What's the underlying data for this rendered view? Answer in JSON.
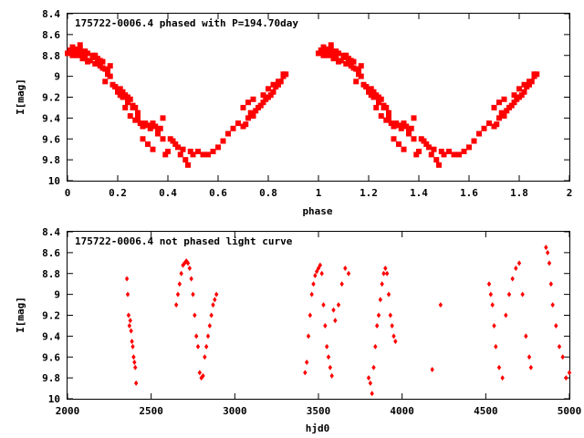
{
  "chart_data": [
    {
      "type": "scatter",
      "title": "175722-0006.4 phased with P=194.70day",
      "xlabel": "phase",
      "ylabel": "I[mag]",
      "xlim": [
        0,
        2
      ],
      "ylim": [
        8.4,
        10
      ],
      "y_inverted": true,
      "grid": false,
      "color": "#ff0000",
      "marker": "filled square",
      "x_ticks": [
        "0",
        "0.2",
        "0.4",
        "0.6",
        "0.8",
        "1",
        "1.2",
        "1.4",
        "1.6",
        "1.8",
        "2"
      ],
      "y_ticks": [
        "8.4",
        "8.6",
        "8.8",
        "9",
        "9.2",
        "9.4",
        "9.6",
        "9.8",
        "10"
      ],
      "series": [
        {
          "x": [
            0.0,
            0.01,
            0.02,
            0.03,
            0.04,
            0.05,
            0.06,
            0.07,
            0.08,
            0.09,
            0.1,
            0.11,
            0.12,
            0.13,
            0.14,
            0.15,
            0.16,
            0.17,
            0.02,
            0.04,
            0.06,
            0.08,
            0.1,
            0.12,
            0.14,
            0.16,
            0.03,
            0.05,
            0.07,
            0.11,
            0.13,
            0.15,
            0.17,
            0.18,
            0.19,
            0.2,
            0.21,
            0.22,
            0.23,
            0.24,
            0.25,
            0.26,
            0.27,
            0.28,
            0.19,
            0.21,
            0.23,
            0.25,
            0.27,
            0.29,
            0.22,
            0.24,
            0.26,
            0.28,
            0.3,
            0.31,
            0.32,
            0.33,
            0.34,
            0.35,
            0.36,
            0.37,
            0.38,
            0.3,
            0.32,
            0.34,
            0.36,
            0.38,
            0.39,
            0.4,
            0.41,
            0.42,
            0.43,
            0.44,
            0.45,
            0.46,
            0.47,
            0.48,
            0.49,
            0.5,
            0.52,
            0.54,
            0.56,
            0.58,
            0.6,
            0.62,
            0.64,
            0.66,
            0.68,
            0.7,
            0.71,
            0.72,
            0.73,
            0.74,
            0.75,
            0.76,
            0.77,
            0.78,
            0.79,
            0.8,
            0.81,
            0.82,
            0.83,
            0.84,
            0.85,
            0.86,
            0.87,
            0.7,
            0.72,
            0.74,
            0.78,
            0.8,
            0.82,
            0.84,
            0.86
          ],
          "y": [
            8.78,
            8.75,
            8.72,
            8.76,
            8.8,
            8.74,
            8.79,
            8.82,
            8.78,
            8.85,
            8.8,
            8.88,
            8.83,
            8.9,
            8.86,
            8.93,
            8.95,
            8.9,
            8.8,
            8.77,
            8.83,
            8.86,
            8.82,
            8.87,
            8.92,
            8.98,
            8.74,
            8.7,
            8.76,
            8.8,
            8.85,
            9.05,
            9.0,
            9.08,
            9.1,
            9.15,
            9.12,
            9.2,
            9.18,
            9.25,
            9.22,
            9.28,
            9.3,
            9.35,
            9.1,
            9.18,
            9.3,
            9.38,
            9.42,
            9.45,
            9.15,
            9.2,
            9.3,
            9.4,
            9.48,
            9.45,
            9.47,
            9.5,
            9.45,
            9.48,
            9.52,
            9.5,
            9.4,
            9.6,
            9.65,
            9.7,
            9.55,
            9.6,
            9.75,
            9.72,
            9.6,
            9.62,
            9.65,
            9.68,
            9.75,
            9.7,
            9.8,
            9.85,
            9.72,
            9.75,
            9.72,
            9.75,
            9.75,
            9.72,
            9.68,
            9.62,
            9.55,
            9.5,
            9.45,
            9.48,
            9.46,
            9.4,
            9.35,
            9.38,
            9.33,
            9.3,
            9.28,
            9.25,
            9.22,
            9.2,
            9.18,
            9.15,
            9.1,
            9.08,
            9.05,
            9.0,
            8.98,
            9.3,
            9.25,
            9.22,
            9.18,
            9.12,
            9.08,
            9.05,
            8.98
          ]
        }
      ]
    },
    {
      "type": "scatter",
      "title": "175722-0006.4 not phased light curve",
      "xlabel": "hjd0",
      "ylabel": "I[mag]",
      "xlim": [
        2000,
        5000
      ],
      "ylim": [
        8.4,
        10
      ],
      "y_inverted": true,
      "grid": false,
      "color": "#ff0000",
      "marker": "filled diamond",
      "x_ticks": [
        "2000",
        "2500",
        "3000",
        "3500",
        "4000",
        "4500",
        "5000"
      ],
      "y_ticks": [
        "8.4",
        "8.6",
        "8.8",
        "9",
        "9.2",
        "9.4",
        "9.6",
        "9.8",
        "10"
      ],
      "series": [
        {
          "x": [
            2355,
            2360,
            2365,
            2370,
            2375,
            2380,
            2385,
            2390,
            2395,
            2400,
            2405,
            2410,
            2650,
            2660,
            2670,
            2680,
            2690,
            2700,
            2710,
            2720,
            2730,
            2740,
            2750,
            2760,
            2770,
            2780,
            2790,
            2800,
            2810,
            2820,
            2830,
            2840,
            2850,
            2860,
            2870,
            2880,
            2890,
            3420,
            3430,
            3440,
            3450,
            3460,
            3470,
            3480,
            3490,
            3500,
            3510,
            3520,
            3530,
            3540,
            3550,
            3560,
            3570,
            3580,
            3590,
            3600,
            3620,
            3640,
            3660,
            3680,
            3800,
            3810,
            3820,
            3830,
            3840,
            3850,
            3860,
            3870,
            3880,
            3890,
            3900,
            3910,
            3920,
            3930,
            3940,
            3950,
            3960,
            4180,
            4230,
            4520,
            4530,
            4540,
            4550,
            4560,
            4580,
            4600,
            4620,
            4640,
            4660,
            4680,
            4700,
            4720,
            4740,
            4760,
            4770,
            4860,
            4870,
            4880,
            4890,
            4900,
            4920,
            4940,
            4960,
            4980,
            5000
          ],
          "y": [
            8.85,
            9.0,
            9.2,
            9.3,
            9.25,
            9.35,
            9.45,
            9.5,
            9.6,
            9.65,
            9.7,
            9.85,
            9.1,
            9.0,
            8.9,
            8.8,
            8.72,
            8.7,
            8.68,
            8.7,
            8.75,
            8.85,
            9.0,
            9.2,
            9.4,
            9.5,
            9.75,
            9.8,
            9.78,
            9.6,
            9.5,
            9.4,
            9.3,
            9.2,
            9.1,
            9.05,
            9.0,
            9.75,
            9.65,
            9.4,
            9.2,
            9.0,
            8.9,
            8.82,
            8.78,
            8.75,
            8.72,
            8.8,
            9.1,
            9.3,
            9.5,
            9.6,
            9.7,
            9.78,
            9.15,
            9.25,
            9.1,
            8.9,
            8.75,
            8.8,
            9.8,
            9.85,
            9.95,
            9.7,
            9.5,
            9.3,
            9.2,
            9.05,
            8.9,
            8.8,
            8.75,
            8.8,
            9.0,
            9.2,
            9.3,
            9.4,
            9.45,
            9.72,
            9.1,
            8.9,
            9.0,
            9.1,
            9.3,
            9.5,
            9.7,
            9.8,
            9.2,
            9.0,
            8.85,
            8.75,
            8.7,
            9.0,
            9.4,
            9.6,
            9.7,
            8.55,
            8.6,
            8.7,
            8.9,
            9.1,
            9.3,
            9.5,
            9.6,
            9.8,
            9.75
          ]
        }
      ]
    }
  ]
}
